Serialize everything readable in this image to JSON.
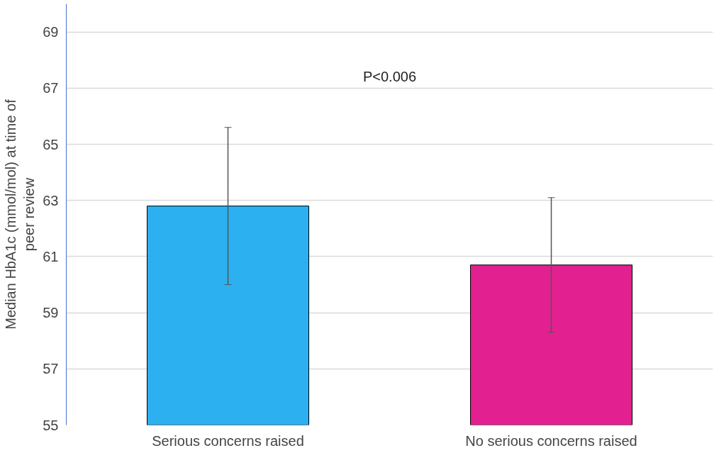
{
  "chart_data": {
    "type": "bar",
    "ylabel": "Median HbA1c (mmol/mol) at time of peer review",
    "categories": [
      "Serious concerns raised",
      "No serious concerns raised"
    ],
    "values": [
      62.8,
      60.7
    ],
    "colors": [
      "#2cb0f0",
      "#e2208f"
    ],
    "errors": [
      [
        60.0,
        65.6
      ],
      [
        58.3,
        63.1
      ]
    ],
    "ylim": [
      55,
      70
    ],
    "yticks": [
      55,
      57,
      59,
      61,
      63,
      65,
      67,
      69
    ],
    "grid": "y",
    "annotations": [
      "P<0.006"
    ]
  }
}
